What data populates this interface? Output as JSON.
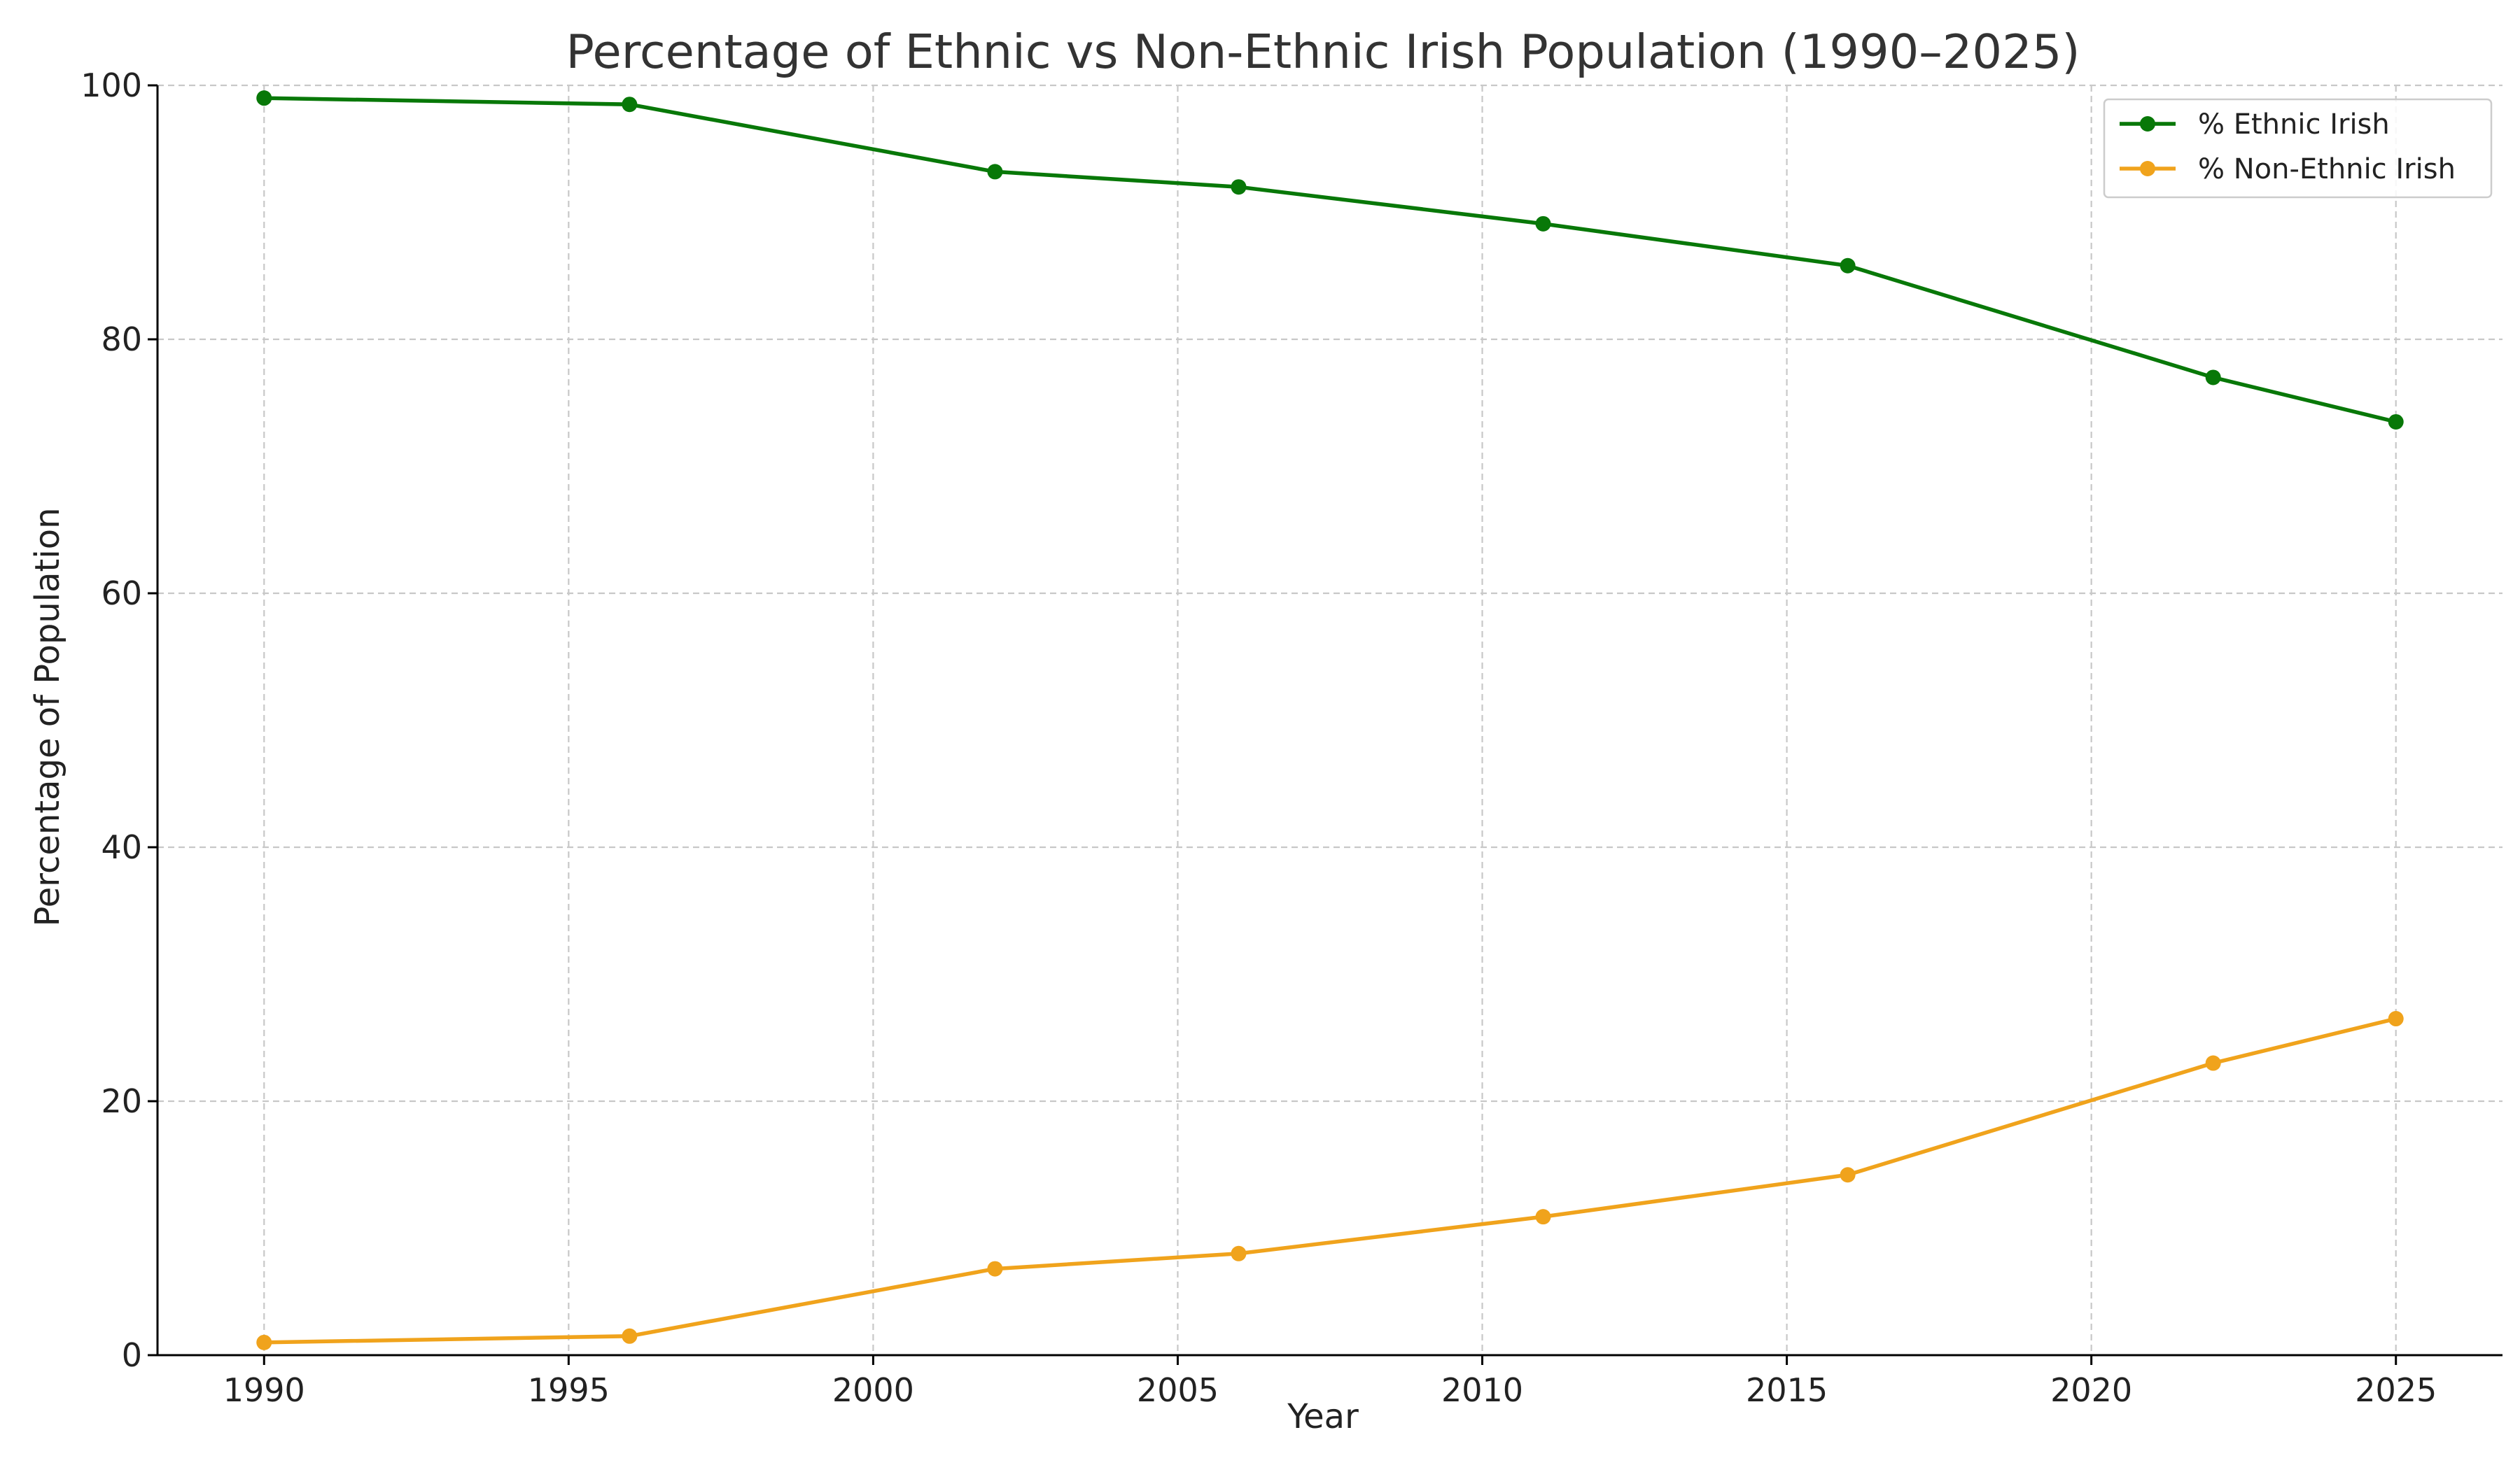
{
  "chart_data": {
    "type": "line",
    "title": "Percentage of Ethnic vs Non-Ethnic Irish Population (1990–2025)",
    "xlabel": "Year",
    "ylabel": "Percentage of Population",
    "x": [
      1990,
      1996,
      2002,
      2006,
      2011,
      2016,
      2022,
      2025
    ],
    "xlim": [
      1988.25,
      2026.75
    ],
    "ylim": [
      0,
      100
    ],
    "xticks": [
      "1990",
      "1995",
      "2000",
      "2005",
      "2010",
      "2015",
      "2020",
      "2025"
    ],
    "yticks": [
      "0",
      "20",
      "40",
      "60",
      "80",
      "100"
    ],
    "grid": true,
    "legend_position": "top-right",
    "series": [
      {
        "name": "% Ethnic Irish",
        "color": "#087808",
        "marker": "circle",
        "values": [
          99.0,
          98.5,
          93.2,
          92.0,
          89.1,
          85.8,
          77.0,
          73.5
        ]
      },
      {
        "name": "% Non-Ethnic Irish",
        "color": "#f0a31c",
        "marker": "circle",
        "values": [
          1.0,
          1.5,
          6.8,
          8.0,
          10.9,
          14.2,
          23.0,
          26.5
        ]
      }
    ]
  }
}
